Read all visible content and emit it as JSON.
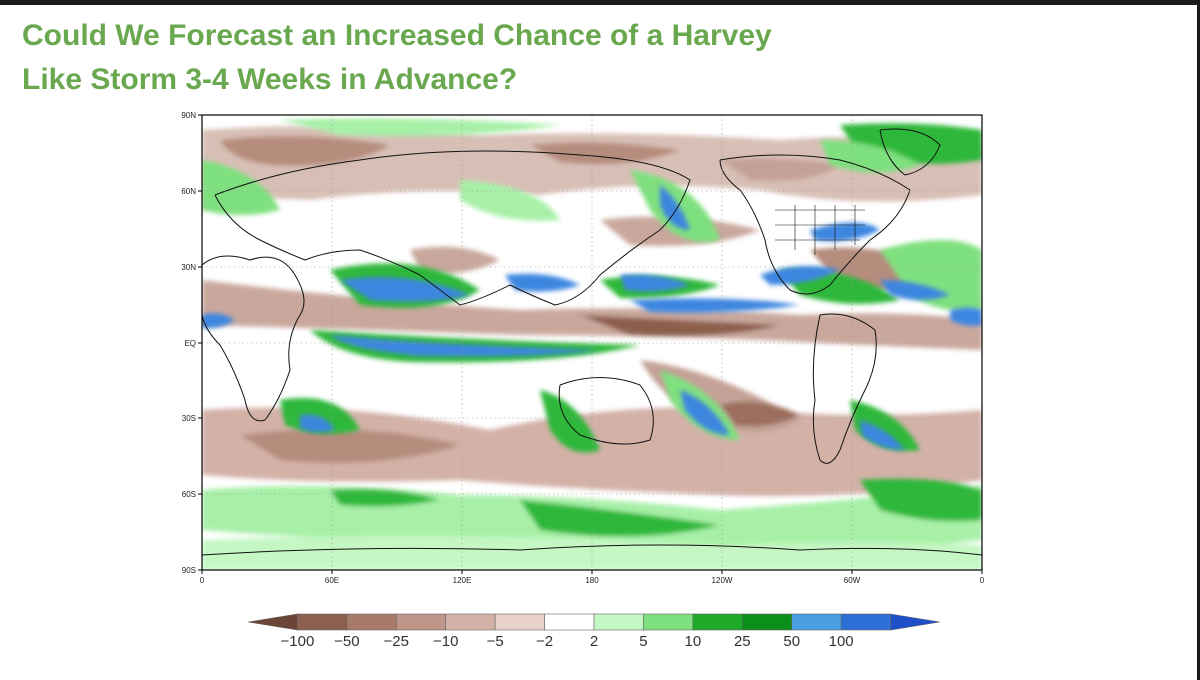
{
  "slide": {
    "title_line1": "Could We Forecast an Increased Chance of a Harvey",
    "title_line2": "Like Storm 3-4 Weeks in Advance?"
  },
  "map": {
    "lat_labels": [
      "90N",
      "60N",
      "30N",
      "EQ",
      "30S",
      "60S",
      "90S"
    ],
    "lon_labels": [
      "0",
      "60E",
      "120E",
      "180",
      "120W",
      "60W",
      "0"
    ],
    "projection": "cylindrical-equidistant",
    "longitude_range": [
      0,
      360
    ],
    "latitude_range": [
      -90,
      90
    ]
  },
  "colorbar": {
    "labels": [
      "-100",
      "-50",
      "-25",
      "-10",
      "-5",
      "-2",
      "2",
      "5",
      "10",
      "25",
      "50",
      "100"
    ],
    "colors": [
      "#6b4636",
      "#8c5f4e",
      "#a77a69",
      "#bf978a",
      "#d3b1a7",
      "#e8d2cb",
      "#ffffff",
      "#c4f7c4",
      "#7fe07f",
      "#1faa2a",
      "#0a8f1a",
      "#4a9fe0",
      "#2c6fd6",
      "#1f4fc8"
    ]
  },
  "colors": {
    "title": "#6aa84f",
    "brown_dark": "#8c5f4e",
    "brown_light": "#d8bfb6",
    "green_light": "#a8f0a8",
    "green": "#2fb83a",
    "blue": "#3d86e0"
  }
}
